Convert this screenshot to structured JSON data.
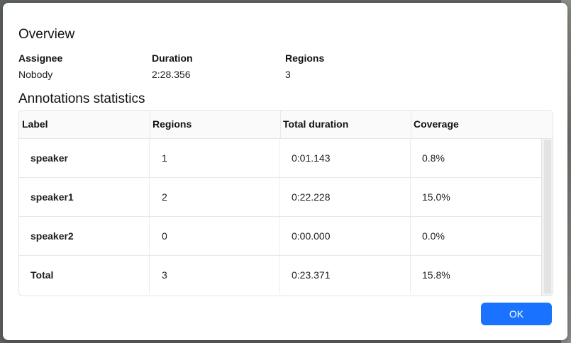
{
  "overview": {
    "title": "Overview",
    "fields": [
      {
        "label": "Assignee",
        "value": "Nobody"
      },
      {
        "label": "Duration",
        "value": "2:28.356"
      },
      {
        "label": "Regions",
        "value": "3"
      }
    ]
  },
  "stats": {
    "title": "Annotations statistics",
    "columns": [
      "Label",
      "Regions",
      "Total duration",
      "Coverage"
    ],
    "rows": [
      {
        "label": "speaker",
        "regions": "1",
        "duration": "0:01.143",
        "coverage": "0.8%"
      },
      {
        "label": "speaker1",
        "regions": "2",
        "duration": "0:22.228",
        "coverage": "15.0%"
      },
      {
        "label": "speaker2",
        "regions": "0",
        "duration": "0:00.000",
        "coverage": "0.0%"
      },
      {
        "label": "Total",
        "regions": "3",
        "duration": "0:23.371",
        "coverage": "15.8%"
      }
    ]
  },
  "actions": {
    "ok_label": "OK"
  },
  "colors": {
    "primary": "#1a73ff",
    "header_bg": "#fafafa",
    "border": "#e6e6e6"
  }
}
